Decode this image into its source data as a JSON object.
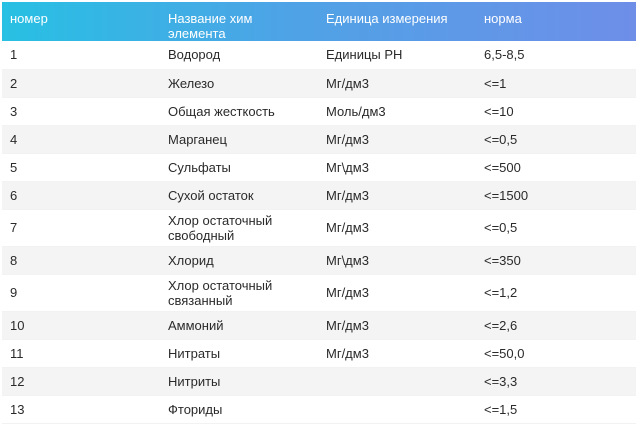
{
  "table": {
    "headers": [
      "номер",
      "Название хим\nэлемента",
      "Единица измерения",
      "норма"
    ],
    "rows": [
      {
        "num": "1",
        "name": "Водород",
        "unit": "Единицы PH",
        "norm": "6,5-8,5",
        "tall": false
      },
      {
        "num": "2",
        "name": "Железо",
        "unit": "Мг/дм3",
        "norm": "<=1",
        "tall": false
      },
      {
        "num": "3",
        "name": "Общая жесткость",
        "unit": "Моль/дм3",
        "norm": "<=10",
        "tall": false
      },
      {
        "num": "4",
        "name": "Марганец",
        "unit": "Мг/дм3",
        "norm": "<=0,5",
        "tall": false
      },
      {
        "num": "5",
        "name": "Сульфаты",
        "unit": "Мг\\дм3",
        "norm": "<=500",
        "tall": false
      },
      {
        "num": "6",
        "name": "Сухой остаток",
        "unit": "Мг/дм3",
        "norm": "<=1500",
        "tall": false
      },
      {
        "num": "7",
        "name": "Хлор остаточный свободный",
        "unit": "Мг/дм3",
        "norm": "<=0,5",
        "tall": true
      },
      {
        "num": "8",
        "name": "Хлорид",
        "unit": "Мг\\дм3",
        "norm": "<=350",
        "tall": false
      },
      {
        "num": "9",
        "name": "Хлор остаточный связанный",
        "unit": "Мг/дм3",
        "norm": "<=1,2",
        "tall": true
      },
      {
        "num": "10",
        "name": "Аммоний",
        "unit": "Мг/дм3",
        "norm": "<=2,6",
        "tall": false
      },
      {
        "num": "11",
        "name": "Нитраты",
        "unit": "Мг/дм3",
        "norm": "<=50,0",
        "tall": false
      },
      {
        "num": "12",
        "name": "Нитриты",
        "unit": "",
        "norm": "<=3,3",
        "tall": false
      },
      {
        "num": "13",
        "name": "Фториды",
        "unit": "",
        "norm": "<=1,5",
        "tall": false
      }
    ]
  },
  "colors": {
    "header_gradient_start": "#27c0e3",
    "header_gradient_end": "#6e8ee8",
    "row_stripe": "#f4f4f4"
  }
}
